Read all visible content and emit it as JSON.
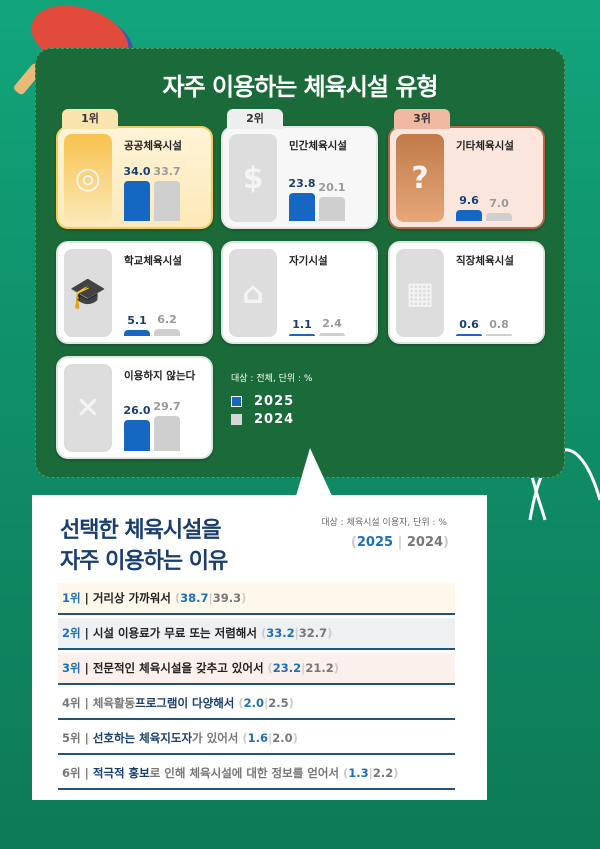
{
  "title": "자주 이용하는 체육시설 유형",
  "note": "대상 : 전체, 단위 : %",
  "legend": [
    "2025",
    "2024"
  ],
  "colors": {
    "y2025": "#1667c1",
    "y2024": "#cfcfcf",
    "accent": "#1a3f6e"
  },
  "chart_data": {
    "type": "bar",
    "title": "자주 이용하는 체육시설 유형",
    "series_names": [
      "2025",
      "2024"
    ],
    "categories": [
      {
        "label": "공공체육시설",
        "rank": "1위",
        "icon": "dumbbell-korea-icon",
        "values": [
          34.0,
          33.7
        ]
      },
      {
        "label": "민간체육시설",
        "rank": "2위",
        "icon": "dollar-dumbbell-icon",
        "values": [
          23.8,
          20.1
        ]
      },
      {
        "label": "기타체육시설",
        "rank": "3위",
        "icon": "question-dumbbell-icon",
        "values": [
          9.6,
          7.0
        ]
      },
      {
        "label": "학교체육시설",
        "rank": "",
        "icon": "graduation-cap-icon",
        "values": [
          5.1,
          6.2
        ]
      },
      {
        "label": "자기시설",
        "rank": "",
        "icon": "house-icon",
        "values": [
          1.1,
          2.4
        ]
      },
      {
        "label": "직장체육시설",
        "rank": "",
        "icon": "office-building-icon",
        "values": [
          0.6,
          0.8
        ]
      },
      {
        "label": "이용하지 않는다",
        "rank": "",
        "icon": "x-icon",
        "values": [
          26.0,
          29.7
        ]
      }
    ]
  },
  "reasons": {
    "title1": "선택한 체육시설을",
    "title2": "자주 이용하는 이유",
    "note": "대상 : 체육시설 이용자, 단위 : %",
    "y2025": "2025",
    "y2024": "2024",
    "rows": [
      {
        "rank": "1위",
        "text": "거리상 가까워서",
        "v2025": "38.7",
        "v2024": "39.3"
      },
      {
        "rank": "2위",
        "text": "시설 이용료가 무료 또는 저렴해서",
        "v2025": "33.2",
        "v2024": "32.7"
      },
      {
        "rank": "3위",
        "text": "전문적인 체육시설을 갖추고 있어서",
        "v2025": "23.2",
        "v2024": "21.2"
      },
      {
        "rank": "4위",
        "pre": "체육활동 ",
        "text": "프로그램이 다양해서",
        "v2025": "2.0",
        "v2024": "2.5"
      },
      {
        "rank": "5위",
        "text": "선호하는 체육지도자",
        "post": "가 있어서",
        "v2025": "1.6",
        "v2024": "2.0"
      },
      {
        "rank": "6위",
        "text": "적극적 홍보",
        "post": "로 인해 체육시설에 대한 정보를 얻어서",
        "v2025": "1.3",
        "v2024": "2.2"
      }
    ]
  }
}
